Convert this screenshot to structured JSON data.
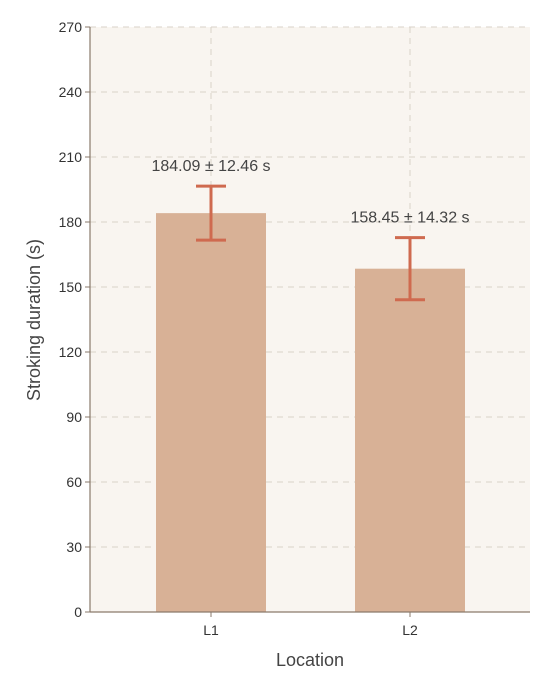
{
  "chart_data": {
    "type": "bar",
    "categories": [
      "L1",
      "L2"
    ],
    "values": [
      184.09,
      158.45
    ],
    "errors": [
      12.46,
      14.32
    ],
    "data_labels": [
      "184.09 ± 12.46 s",
      "158.45 ± 14.32 s"
    ],
    "xlabel": "Location",
    "ylabel": "Stroking duration (s)",
    "ylim": [
      0,
      270
    ],
    "yticks": [
      "0",
      "30",
      "60",
      "90",
      "120",
      "150",
      "180",
      "210",
      "240",
      "270"
    ],
    "grid": true,
    "colors": {
      "plot_background": "#f9f5f0",
      "bar": "#d8b196",
      "error_bar": "#cf6a4f",
      "grid": "#d9d2c9",
      "axis": "#8a7a6b"
    }
  }
}
